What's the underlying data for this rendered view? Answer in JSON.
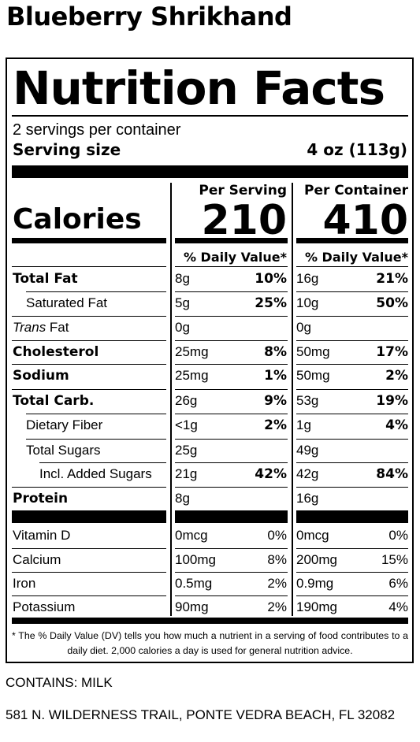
{
  "product": {
    "title": "Blueberry Shrikhand"
  },
  "label": {
    "heading": "Nutrition Facts",
    "servings_per_container": "2 servings per container",
    "serving_size_label": "Serving size",
    "serving_size_value": "4 oz (113g)",
    "per_serving_header": "Per Serving",
    "per_container_header": "Per Container",
    "calories_label": "Calories",
    "calories_serving": "210",
    "calories_container": "410",
    "dv_header": "% Daily Value*",
    "nutrients": [
      {
        "name": "Total Fat",
        "amt_s": "8g",
        "dv_s": "10%",
        "amt_c": "16g",
        "dv_c": "21%"
      },
      {
        "name": "Saturated Fat",
        "amt_s": "5g",
        "dv_s": "25%",
        "amt_c": "10g",
        "dv_c": "50%"
      },
      {
        "name_italic": "Trans",
        "name": " Fat",
        "amt_s": "0g",
        "dv_s": "",
        "amt_c": "0g",
        "dv_c": ""
      },
      {
        "name": "Cholesterol",
        "amt_s": "25mg",
        "dv_s": "8%",
        "amt_c": "50mg",
        "dv_c": "17%"
      },
      {
        "name": "Sodium",
        "amt_s": "25mg",
        "dv_s": "1%",
        "amt_c": "50mg",
        "dv_c": "2%"
      },
      {
        "name": "Total Carb.",
        "amt_s": "26g",
        "dv_s": "9%",
        "amt_c": "53g",
        "dv_c": "19%"
      },
      {
        "name": "Dietary Fiber",
        "amt_s": "<1g",
        "dv_s": "2%",
        "amt_c": "1g",
        "dv_c": "4%"
      },
      {
        "name": "Total Sugars",
        "amt_s": "25g",
        "dv_s": "",
        "amt_c": "49g",
        "dv_c": ""
      },
      {
        "name": "Incl. Added Sugars",
        "amt_s": "21g",
        "dv_s": "42%",
        "amt_c": "42g",
        "dv_c": "84%"
      },
      {
        "name": "Protein",
        "amt_s": "8g",
        "dv_s": "",
        "amt_c": "16g",
        "dv_c": ""
      }
    ],
    "vitamins": [
      {
        "name": "Vitamin D",
        "amt_s": "0mcg",
        "dv_s": "0%",
        "amt_c": "0mcg",
        "dv_c": "0%"
      },
      {
        "name": "Calcium",
        "amt_s": "100mg",
        "dv_s": "8%",
        "amt_c": "200mg",
        "dv_c": "15%"
      },
      {
        "name": "Iron",
        "amt_s": "0.5mg",
        "dv_s": "2%",
        "amt_c": "0.9mg",
        "dv_c": "6%"
      },
      {
        "name": "Potassium",
        "amt_s": "90mg",
        "dv_s": "2%",
        "amt_c": "190mg",
        "dv_c": "4%"
      }
    ],
    "footnote": "* The % Daily Value (DV) tells you how much a nutrient in a serving of food contributes to a daily diet. 2,000 calories a day is used for general nutrition advice."
  },
  "allergens": "CONTAINS: MILK",
  "address": "581 N. WILDERNESS TRAIL, PONTE VEDRA BEACH, FL 32082"
}
